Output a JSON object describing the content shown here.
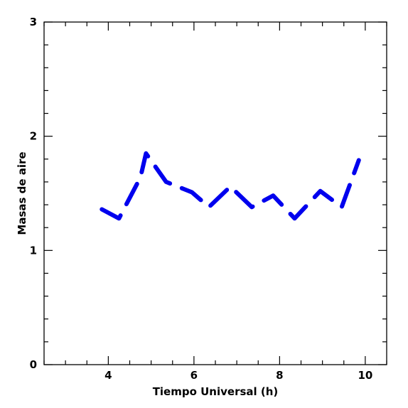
{
  "chart_data": {
    "type": "line",
    "title": "",
    "xlabel": "Tiempo Universal (h)",
    "ylabel": "Masas de aire",
    "xlim": [
      2.5,
      10.5
    ],
    "ylim": [
      0,
      3
    ],
    "x_ticks": [
      4,
      6,
      8,
      10
    ],
    "x_tick_labels": [
      "4",
      "6",
      "8",
      "10"
    ],
    "y_ticks": [
      0,
      1,
      2,
      3
    ],
    "y_tick_labels": [
      "0",
      "1",
      "2",
      "3"
    ],
    "line_style": "dashed",
    "grid": false,
    "series": [
      {
        "color": "#0000ee",
        "x": [
          3.85,
          4.25,
          4.75,
          4.88,
          5.35,
          5.75,
          5.95,
          6.35,
          6.85,
          7.35,
          7.85,
          8.35,
          8.95,
          9.45,
          9.85
        ],
        "y": [
          1.36,
          1.28,
          1.64,
          1.85,
          1.6,
          1.54,
          1.51,
          1.38,
          1.56,
          1.38,
          1.48,
          1.28,
          1.52,
          1.38,
          1.79
        ]
      }
    ]
  }
}
